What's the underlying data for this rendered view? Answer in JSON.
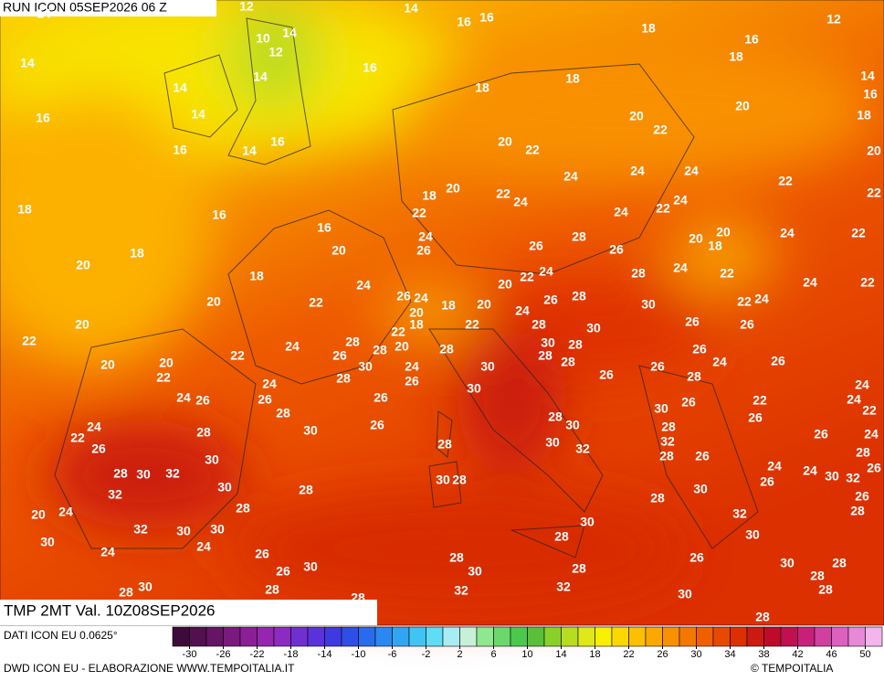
{
  "header": {
    "title": "RUN ICON 05SEP2026 06 Z"
  },
  "map": {
    "labels": [
      12,
      14,
      16,
      16,
      18,
      12,
      14,
      10,
      14,
      12,
      16,
      18,
      14,
      16,
      14,
      14,
      18,
      18,
      14,
      16,
      16,
      14,
      20,
      20,
      18,
      22,
      16,
      16,
      14,
      20,
      22,
      20,
      24,
      24,
      24,
      22,
      20,
      18,
      22,
      24,
      24,
      22,
      18,
      16,
      22,
      24,
      22,
      16,
      24,
      28,
      20,
      20,
      18,
      24,
      22,
      18,
      20,
      26,
      26,
      26,
      20,
      18,
      24,
      20,
      22,
      24,
      28,
      24,
      22,
      24,
      22,
      20,
      22,
      26,
      24,
      18,
      20,
      26,
      28,
      30,
      22,
      24,
      20,
      20,
      22,
      18,
      22,
      22,
      24,
      28,
      30,
      26,
      26,
      24,
      28,
      26,
      28,
      20,
      28,
      30,
      28,
      26,
      22,
      20,
      20,
      22,
      30,
      24,
      30,
      28,
      28,
      26,
      24,
      26,
      28,
      26,
      24,
      28,
      26,
      24,
      24,
      26,
      26,
      26,
      30,
      24,
      22,
      26,
      30,
      28,
      28,
      30,
      28,
      26,
      22,
      24,
      22,
      30,
      26,
      28,
      26,
      24,
      32,
      26,
      28,
      30,
      32,
      28,
      26,
      28,
      30,
      24,
      24,
      30,
      32,
      26,
      28,
      30,
      32,
      30,
      28,
      26,
      32,
      30,
      28,
      30,
      28,
      26,
      20,
      24,
      28,
      28,
      32,
      32,
      30,
      30,
      30,
      28,
      30,
      30,
      24,
      24,
      26,
      26,
      28,
      26,
      30,
      28,
      30,
      28,
      30,
      28,
      28,
      30,
      28,
      32,
      32,
      28,
      28,
      30,
      28,
      28
    ]
  },
  "footer": {
    "product": "TMP 2MT Val. 10Z08SEP2026",
    "source": "DATI ICON EU 0.0625°",
    "credit": "DWD ICON EU - ELABORAZIONE WWW.TEMPOITALIA.IT",
    "copyright": "© TEMPOITALIA"
  },
  "legend": {
    "lim": [
      -32,
      52
    ],
    "ticks": [
      -30,
      -26,
      -22,
      -18,
      -14,
      -10,
      -6,
      -2,
      2,
      6,
      10,
      14,
      18,
      22,
      26,
      30,
      34,
      38,
      42,
      46,
      50
    ],
    "colors": [
      "#3d0a3a",
      "#52104f",
      "#661466",
      "#7a1a7e",
      "#8a1f96",
      "#9626ad",
      "#8c2bc2",
      "#7030d0",
      "#5a32dc",
      "#3f3ae0",
      "#2f4ee6",
      "#2a6aec",
      "#2a88f0",
      "#30a6f2",
      "#40c4f4",
      "#60dcf4",
      "#a8ecf4",
      "#c8f0d8",
      "#8fe88f",
      "#6cd86c",
      "#4cc84c",
      "#5ac03a",
      "#8ad02a",
      "#b8dc20",
      "#e0e818",
      "#f8f000",
      "#fcd800",
      "#fcc000",
      "#fca800",
      "#f89000",
      "#f47800",
      "#f06000",
      "#e84800",
      "#dc3000",
      "#cc1a10",
      "#c00a2a",
      "#c01050",
      "#c8207a",
      "#d040a0",
      "#dc60c0",
      "#e888d8",
      "#f4b4ec"
    ]
  }
}
